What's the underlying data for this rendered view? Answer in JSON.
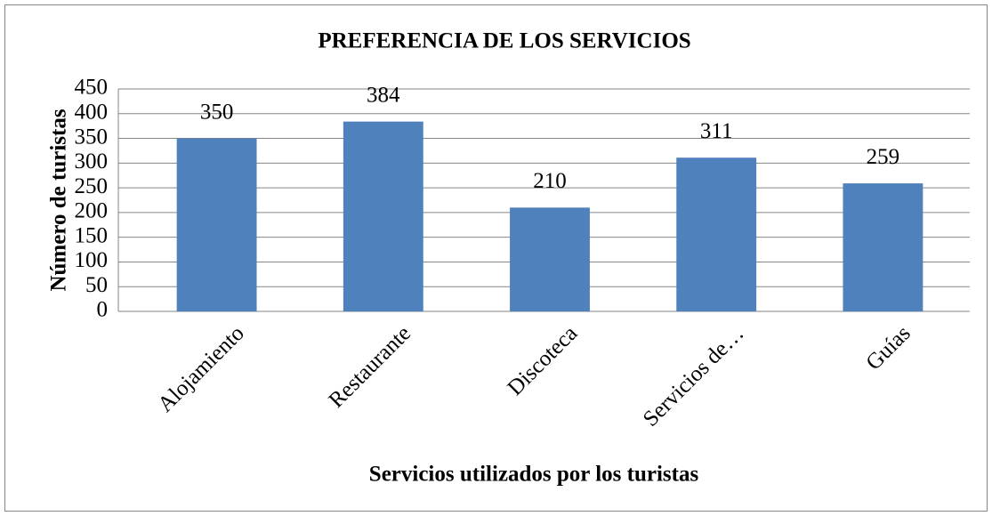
{
  "chart_data": {
    "type": "bar",
    "title": "PREFERENCIA DE LOS SERVICIOS",
    "x_label": "Servicios utilizados por los turistas",
    "y_label": "Número de turistas",
    "categories": [
      "Alojamiento",
      "Restaurante",
      "Discoteca",
      "Servicios de…",
      "Guías"
    ],
    "values": [
      350,
      384,
      210,
      311,
      259
    ],
    "color": "#4f81bd",
    "ylim": [
      0,
      450
    ],
    "yticks": [
      0,
      50,
      100,
      150,
      200,
      250,
      300,
      350,
      400,
      450
    ],
    "grid": true
  }
}
